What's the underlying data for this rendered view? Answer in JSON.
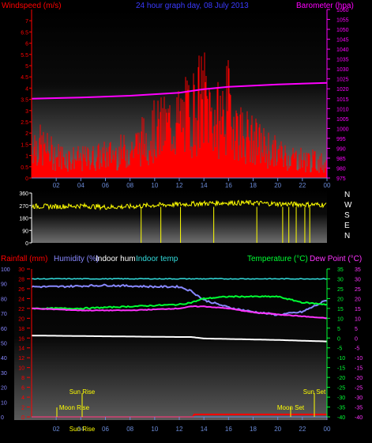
{
  "colors": {
    "background": "#000000",
    "wind": "#ff0000",
    "gust": "#ffff88",
    "wind_avg": "#5a7fd0",
    "barometer": "#ff00ff",
    "direction": "#ffff00",
    "rain": "#ff0000",
    "humidity": "#8888ff",
    "indoor_hum": "#ffffff",
    "indoor_temp": "#33dddd",
    "temperature": "#00ff33",
    "dew_point": "#ff33ff",
    "sun": "#ffff00"
  },
  "chart_data": [
    {
      "type": "area",
      "panel": "wind-barometer",
      "title": "24 hour graph day, 08 July 2013",
      "ylabel": "Windspeed (m/s)",
      "y2label": "Barometer (hpa)",
      "ylim": [
        0,
        7.5
      ],
      "y2lim": [
        975,
        1060
      ],
      "yticks": [
        "0",
        "0.5",
        "1",
        "1.5",
        "2",
        "2.5",
        "3",
        "3.5",
        "4",
        "4.5",
        "5",
        "5.5",
        "6",
        "6.5",
        "7"
      ],
      "y2ticks": [
        "975",
        "980",
        "985",
        "990",
        "995",
        "1000",
        "1005",
        "1010",
        "1015",
        "1020",
        "1025",
        "1030",
        "1035",
        "1040",
        "1045",
        "1050",
        "1055",
        "1060"
      ],
      "xticks": [
        "02",
        "04",
        "06",
        "08",
        "10",
        "12",
        "14",
        "16",
        "18",
        "20",
        "22",
        "00"
      ],
      "grid": false,
      "series": [
        {
          "name": "Barometer (hpa)",
          "x": [
            0,
            4,
            8,
            12,
            14,
            16,
            20,
            24
          ],
          "values": [
            1015.0,
            1015.6,
            1016.5,
            1018.0,
            1019.8,
            1021.0,
            1022.2,
            1023.0
          ]
        },
        {
          "name": "Windspeed (m/s)",
          "x": [
            0,
            2,
            4,
            6,
            8,
            10,
            12,
            13,
            14,
            15,
            16,
            17,
            18,
            20,
            22,
            24
          ],
          "values": [
            2.0,
            1.2,
            1.0,
            1.2,
            1.5,
            2.5,
            3.0,
            3.5,
            4.3,
            3.0,
            3.8,
            2.5,
            2.0,
            1.3,
            1.0,
            0.8
          ]
        }
      ]
    },
    {
      "type": "line",
      "panel": "wind-direction",
      "ylim": [
        0,
        360
      ],
      "yticks": [
        "0",
        "90",
        "180",
        "270",
        "360"
      ],
      "compass": [
        "N",
        "W",
        "S",
        "E",
        "N"
      ],
      "x": [
        0,
        2,
        4,
        6,
        8,
        10,
        12,
        14,
        16,
        18,
        20,
        22,
        24
      ],
      "values": [
        265,
        262,
        268,
        258,
        262,
        272,
        278,
        285,
        290,
        288,
        282,
        278,
        275
      ]
    },
    {
      "type": "line",
      "panel": "rain-humidity-temperature",
      "legend": [
        "Rainfall (mm)",
        "Humidity (%)",
        "Indoor hum",
        "Indoor temp",
        "Temperature (°C)",
        "Dew Point (°C)"
      ],
      "ylim": [
        0,
        100
      ],
      "y_rain_lim": [
        0,
        30
      ],
      "y_temp_lim": [
        -40,
        35
      ],
      "yticks": [
        "0",
        "10",
        "20",
        "30",
        "40",
        "50",
        "60",
        "70",
        "80",
        "90",
        "100"
      ],
      "y_rain_ticks": [
        "0",
        "2",
        "4",
        "6",
        "8",
        "10",
        "12",
        "14",
        "16",
        "18",
        "20",
        "22",
        "24",
        "26",
        "28",
        "30"
      ],
      "y_temp_ticks": [
        "-40",
        "-35",
        "-30",
        "-25",
        "-20",
        "-15",
        "-10",
        "-5",
        "0",
        "5",
        "10",
        "15",
        "20",
        "25",
        "30",
        "35"
      ],
      "xticks": [
        "02",
        "04",
        "06",
        "08",
        "10",
        "12",
        "14",
        "16",
        "18",
        "20",
        "22",
        "00"
      ],
      "series": [
        {
          "name": "Humidity (%)",
          "x": [
            0,
            2,
            6,
            10,
            12,
            13,
            14,
            16,
            18,
            20,
            22,
            24
          ],
          "values": [
            88,
            88,
            89,
            88,
            88,
            85,
            79,
            74,
            71,
            69,
            71,
            79
          ]
        },
        {
          "name": "Indoor hum",
          "x": [
            0,
            12,
            13,
            14,
            20,
            24
          ],
          "values": [
            55,
            54,
            54,
            53,
            52,
            51
          ]
        },
        {
          "name": "Indoor temp",
          "x": [
            0,
            12,
            24
          ],
          "values": [
            28,
            28,
            28
          ]
        },
        {
          "name": "Temperature (°C)",
          "x": [
            0,
            4,
            8,
            12,
            13,
            14,
            16,
            18,
            20,
            22,
            24
          ],
          "values": [
            15,
            15,
            16,
            17,
            18,
            20,
            21,
            21,
            21,
            18,
            17
          ]
        },
        {
          "name": "Dew Point (°C)",
          "x": [
            0,
            4,
            8,
            12,
            13,
            14,
            16,
            18,
            20,
            22,
            24
          ],
          "values": [
            15,
            14,
            14,
            15,
            16,
            16,
            15,
            13,
            12,
            11,
            10
          ]
        },
        {
          "name": "Rainfall (mm)",
          "x": [
            0,
            13.1,
            13.1,
            24
          ],
          "values": [
            0,
            0,
            0.5,
            0.5
          ]
        }
      ],
      "annotations": [
        "Sun Rise",
        "Moon Rise",
        "Sun Set",
        "Moon Set",
        "Sun Rise"
      ]
    }
  ]
}
